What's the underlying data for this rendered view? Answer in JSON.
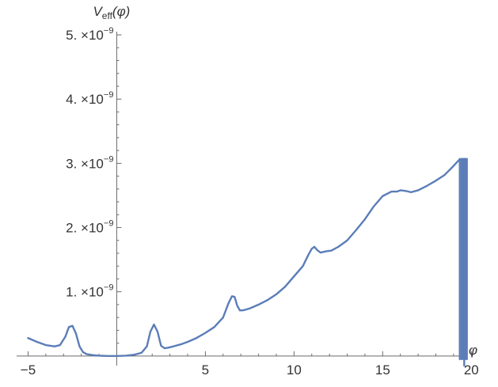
{
  "chart_data": {
    "type": "line",
    "title": "",
    "xlabel": "φ",
    "ylabel": "V_eff(φ)",
    "ylabel_parts": {
      "main": "V",
      "sub": "eff",
      "rest": "(φ)"
    },
    "xlim": [
      -5.2,
      20.3
    ],
    "ylim": [
      -1.5e-10,
      5.05e-09
    ],
    "x_ticks": [
      {
        "value": -5,
        "label": "−5"
      },
      {
        "value": 5,
        "label": "5"
      },
      {
        "value": 10,
        "label": "10"
      },
      {
        "value": 15,
        "label": "15"
      },
      {
        "value": 20,
        "label": "20"
      }
    ],
    "y_ticks": [
      {
        "value": 1e-09,
        "mantissa": "1. ×10",
        "exponent": "−9"
      },
      {
        "value": 2e-09,
        "mantissa": "2. ×10",
        "exponent": "−9"
      },
      {
        "value": 3e-09,
        "mantissa": "3. ×10",
        "exponent": "−9"
      },
      {
        "value": 4e-09,
        "mantissa": "4. ×10",
        "exponent": "−9"
      },
      {
        "value": 5e-09,
        "mantissa": "5. ×10",
        "exponent": "−9"
      }
    ],
    "color": "#5b7db8",
    "series": [
      {
        "x": [
          -5,
          -4.5,
          -4,
          -3.5,
          -3.2,
          -2.9,
          -2.7,
          -2.5,
          -2.3,
          -2.1,
          -1.9,
          -1.7,
          -1.4,
          -1,
          -0.5,
          0,
          0.5,
          1,
          1.4,
          1.7,
          1.9,
          2.1,
          2.3,
          2.5,
          2.7,
          2.9,
          3.2,
          3.6,
          4.0,
          4.5,
          5.0,
          5.5,
          6.0,
          6.3,
          6.5,
          6.65,
          6.8,
          6.95,
          7.1,
          7.25,
          7.5,
          8.0,
          8.5,
          9.0,
          9.5,
          10.0,
          10.5,
          10.8,
          11.0,
          11.15,
          11.3,
          11.5,
          11.8,
          12.1,
          12.5,
          13.0,
          13.5,
          14.0,
          14.5,
          15.0,
          15.5,
          15.8,
          16.0,
          16.3,
          16.6,
          17.0,
          17.5,
          18.0,
          18.5,
          19.0,
          19.3
        ],
        "y": [
          2.8e-10,
          2.2e-10,
          1.7e-10,
          1.5e-10,
          1.7e-10,
          3e-10,
          4.5e-10,
          4.7e-10,
          3.5e-10,
          1.5e-10,
          6e-11,
          3e-11,
          1.5e-11,
          5e-12,
          0.0,
          0.0,
          5e-12,
          2e-11,
          5e-11,
          1.5e-10,
          3.8e-10,
          4.9e-10,
          3.8e-10,
          1.6e-10,
          1.2e-10,
          1.3e-10,
          1.5e-10,
          1.8e-10,
          2.2e-10,
          2.8e-10,
          3.6e-10,
          4.5e-10,
          6e-10,
          8.2e-10,
          9.3e-10,
          9.2e-10,
          7.8e-10,
          7.1e-10,
          7.1e-10,
          7.2e-10,
          7.4e-10,
          8e-10,
          8.7e-10,
          9.6e-10,
          1.08e-09,
          1.24e-09,
          1.4e-09,
          1.57e-09,
          1.67e-09,
          1.7e-09,
          1.65e-09,
          1.61e-09,
          1.63e-09,
          1.64e-09,
          1.7e-09,
          1.8e-09,
          1.96e-09,
          2.13e-09,
          2.33e-09,
          2.49e-09,
          2.56e-09,
          2.56e-09,
          2.58e-09,
          2.57e-09,
          2.55e-09,
          2.58e-09,
          2.65e-09,
          2.73e-09,
          2.82e-09,
          2.96e-09,
          3.05e-09
        ]
      }
    ],
    "oscillation_x": [
      19.35,
      19.45,
      19.55,
      19.65,
      19.75
    ],
    "oscillation_y": [
      3.07e-09,
      -5e-11
    ],
    "final_drop": {
      "x": 19.6,
      "y_from": 3.07e-09,
      "y_to": -1.5e-10
    },
    "grid": false
  }
}
